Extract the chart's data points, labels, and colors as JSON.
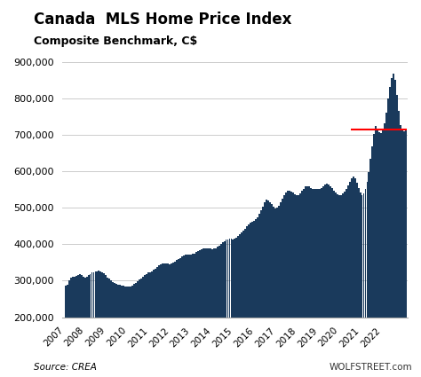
{
  "title": "Canada  MLS Home Price Index",
  "subtitle": "Composite Benchmark, C$",
  "source_left": "Source: CREA",
  "source_right": "WOLFSTREET.com",
  "bar_color": "#1a3a5c",
  "red_line_y": 716000,
  "red_line_xstart": 2020.5,
  "red_line_xend": 2023.15,
  "ylim": [
    200000,
    900000
  ],
  "yticks": [
    200000,
    300000,
    400000,
    500000,
    600000,
    700000,
    800000,
    900000
  ],
  "xlabel_years": [
    "2007",
    "2008",
    "2009",
    "2010",
    "2011",
    "2012",
    "2013",
    "2014",
    "2015",
    "2016",
    "2017",
    "2018",
    "2019",
    "2020",
    "2021",
    "2022"
  ],
  "background_color": "#ffffff",
  "monthly_data": [
    287000,
    290000,
    302000,
    308000,
    310000,
    312000,
    313000,
    315000,
    317000,
    315000,
    312000,
    308000,
    310000,
    315000,
    318000,
    322000,
    324000,
    326000,
    326000,
    327000,
    326000,
    323000,
    320000,
    316000,
    308000,
    305000,
    300000,
    296000,
    294000,
    292000,
    290000,
    288000,
    287000,
    286000,
    285000,
    284000,
    283000,
    284000,
    287000,
    291000,
    295000,
    299000,
    303000,
    307000,
    311000,
    315000,
    319000,
    322000,
    324000,
    326000,
    330000,
    334000,
    338000,
    342000,
    345000,
    347000,
    348000,
    348000,
    347000,
    346000,
    347000,
    349000,
    353000,
    357000,
    360000,
    363000,
    366000,
    369000,
    371000,
    372000,
    372000,
    372000,
    373000,
    375000,
    378000,
    381000,
    384000,
    387000,
    389000,
    390000,
    390000,
    389000,
    388000,
    387000,
    388000,
    390000,
    393000,
    397000,
    401000,
    405000,
    409000,
    412000,
    414000,
    415000,
    415000,
    414000,
    415000,
    418000,
    422000,
    427000,
    432000,
    437000,
    443000,
    449000,
    455000,
    460000,
    463000,
    465000,
    468000,
    474000,
    483000,
    493000,
    504000,
    516000,
    523000,
    521000,
    516000,
    510000,
    504000,
    499000,
    500000,
    506000,
    516000,
    526000,
    535000,
    542000,
    546000,
    547000,
    545000,
    542000,
    538000,
    535000,
    535000,
    539000,
    546000,
    553000,
    558000,
    560000,
    558000,
    555000,
    553000,
    552000,
    551000,
    551000,
    552000,
    555000,
    560000,
    565000,
    567000,
    565000,
    560000,
    554000,
    547000,
    541000,
    537000,
    535000,
    536000,
    539000,
    545000,
    553000,
    562000,
    572000,
    581000,
    585000,
    582000,
    570000,
    554000,
    541000,
    536000,
    540000,
    552000,
    572000,
    599000,
    635000,
    669000,
    703000,
    724000,
    717000,
    708000,
    705000,
    712000,
    731000,
    762000,
    800000,
    832000,
    855000,
    868000,
    851000,
    810000,
    765000,
    726000,
    715000,
    711000,
    716000
  ]
}
